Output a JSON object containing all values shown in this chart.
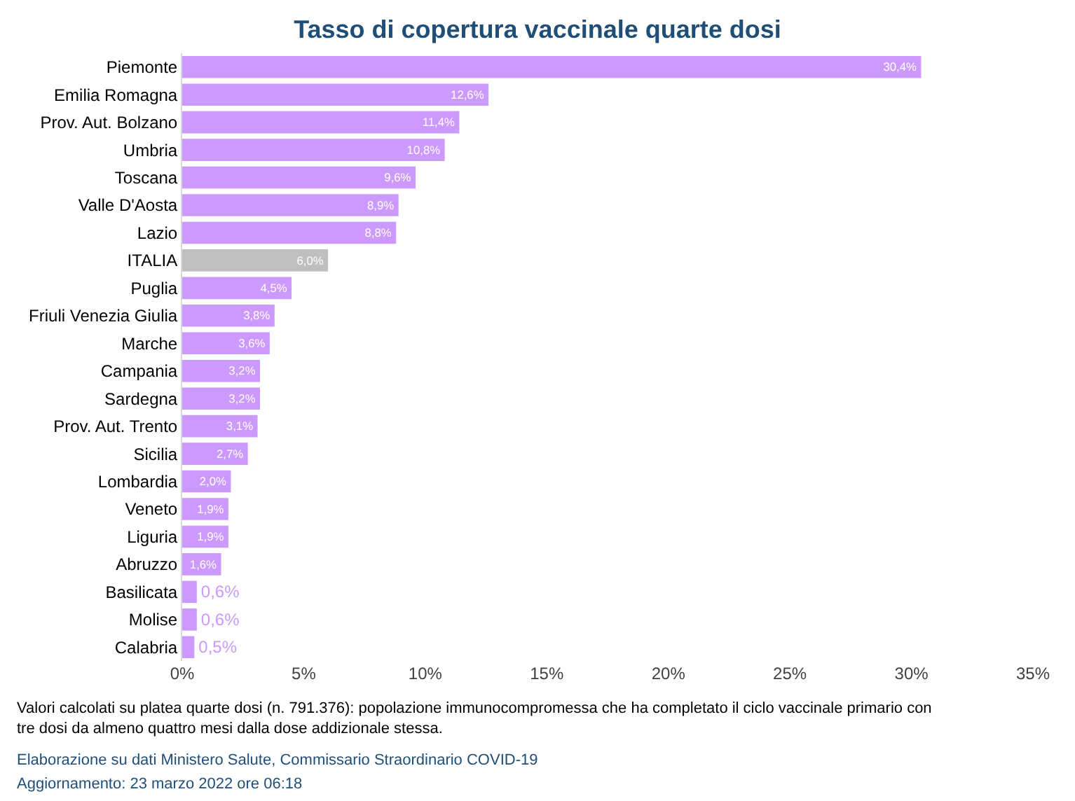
{
  "chart_data": {
    "type": "bar",
    "orientation": "horizontal",
    "title": "Tasso di copertura vaccinale quarte dosi",
    "categories": [
      "Piemonte",
      "Emilia Romagna",
      "Prov. Aut. Bolzano",
      "Umbria",
      "Toscana",
      "Valle D'Aosta",
      "Lazio",
      "ITALIA",
      "Puglia",
      "Friuli Venezia Giulia",
      "Marche",
      "Campania",
      "Sardegna",
      "Prov. Aut. Trento",
      "Sicilia",
      "Lombardia",
      "Veneto",
      "Liguria",
      "Abruzzo",
      "Basilicata",
      "Molise",
      "Calabria"
    ],
    "values": [
      30.4,
      12.6,
      11.4,
      10.8,
      9.6,
      8.9,
      8.8,
      6.0,
      4.5,
      3.8,
      3.6,
      3.2,
      3.2,
      3.1,
      2.7,
      2.0,
      1.9,
      1.9,
      1.6,
      0.6,
      0.6,
      0.5
    ],
    "value_labels": [
      "30,4%",
      "12,6%",
      "11,4%",
      "10,8%",
      "9,6%",
      "8,9%",
      "8,8%",
      "6,0%",
      "4,5%",
      "3,8%",
      "3,6%",
      "3,2%",
      "3,2%",
      "3,1%",
      "2,7%",
      "2,0%",
      "1,9%",
      "1,9%",
      "1,6%",
      "0,6%",
      "0,6%",
      "0,5%"
    ],
    "colors": [
      "#cc99ff",
      "#cc99ff",
      "#cc99ff",
      "#cc99ff",
      "#cc99ff",
      "#cc99ff",
      "#cc99ff",
      "#bfbfbf",
      "#cc99ff",
      "#cc99ff",
      "#cc99ff",
      "#cc99ff",
      "#cc99ff",
      "#cc99ff",
      "#cc99ff",
      "#cc99ff",
      "#cc99ff",
      "#cc99ff",
      "#cc99ff",
      "#cc99ff",
      "#cc99ff",
      "#cc99ff"
    ],
    "xlim": [
      0,
      35
    ],
    "xticks": [
      {
        "value": 0,
        "label": "0%"
      },
      {
        "value": 5,
        "label": "5%"
      },
      {
        "value": 10,
        "label": "10%"
      },
      {
        "value": 15,
        "label": "15%"
      },
      {
        "value": 20,
        "label": "20%"
      },
      {
        "value": 25,
        "label": "25%"
      },
      {
        "value": 30,
        "label": "30%"
      },
      {
        "value": 35,
        "label": "35%"
      }
    ],
    "annotations": [
      "Valori calcolati su platea quarte dosi (n. 791.376): popolazione immunocompromessa che ha completato il ciclo vaccinale primario con\ntre dosi da almeno quattro mesi dalla dose addizionale stessa.",
      "Elaborazione su dati Ministero Salute, Commissario Straordinario COVID-19",
      "Aggiornamento: 23 marzo 2022 ore 06:18"
    ]
  }
}
